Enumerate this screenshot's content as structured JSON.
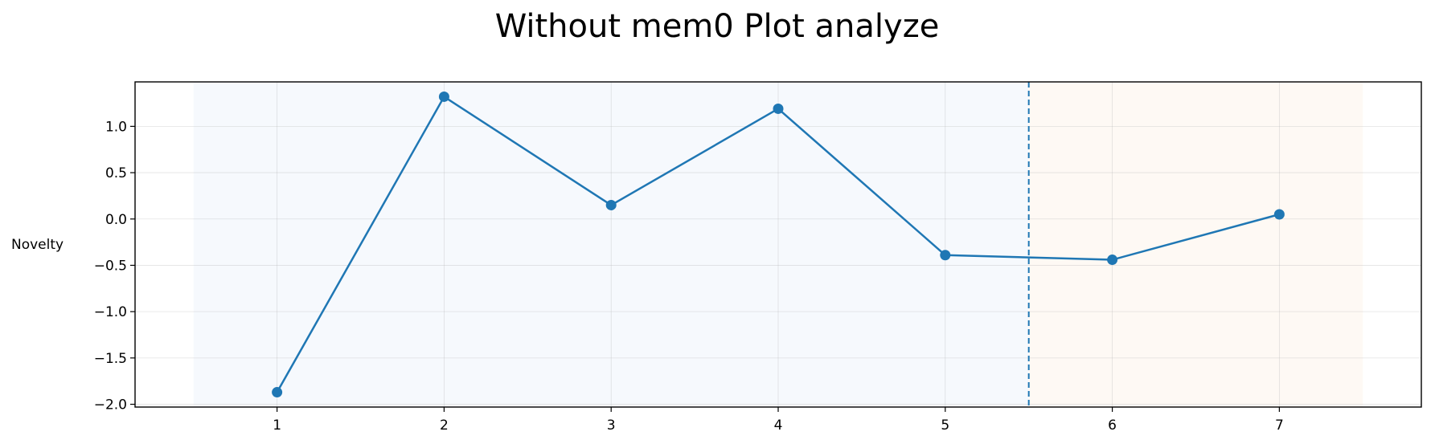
{
  "chart_data": {
    "type": "line",
    "title": "Without mem0 Plot analyze",
    "xlabel": "",
    "ylabel": "Novelty",
    "x": [
      1,
      2,
      3,
      4,
      5,
      6,
      7
    ],
    "series": [
      {
        "values": [
          -1.87,
          1.32,
          0.15,
          1.19,
          -0.39,
          -0.44,
          0.05
        ],
        "color": "#1f77b4",
        "marker": "circle"
      }
    ],
    "xticks": [
      "1",
      "2",
      "3",
      "4",
      "5",
      "6",
      "7"
    ],
    "yticks": [
      "1.0",
      "0.5",
      "0.0",
      "−0.5",
      "−1.0",
      "−1.5",
      "−2.0"
    ],
    "ytick_values": [
      1.0,
      0.5,
      0.0,
      -0.5,
      -1.0,
      -1.5,
      -2.0
    ],
    "xlim": [
      0.15,
      7.85
    ],
    "ylim": [
      -2.03,
      1.48
    ],
    "grid": true,
    "regions": [
      {
        "from": 0.5,
        "to": 5.5,
        "color": "#f6f9fd"
      },
      {
        "from": 5.5,
        "to": 7.5,
        "color": "#fef9f4"
      }
    ],
    "vline": {
      "x": 5.5,
      "style": "dashed",
      "color": "#1f77b4"
    }
  }
}
